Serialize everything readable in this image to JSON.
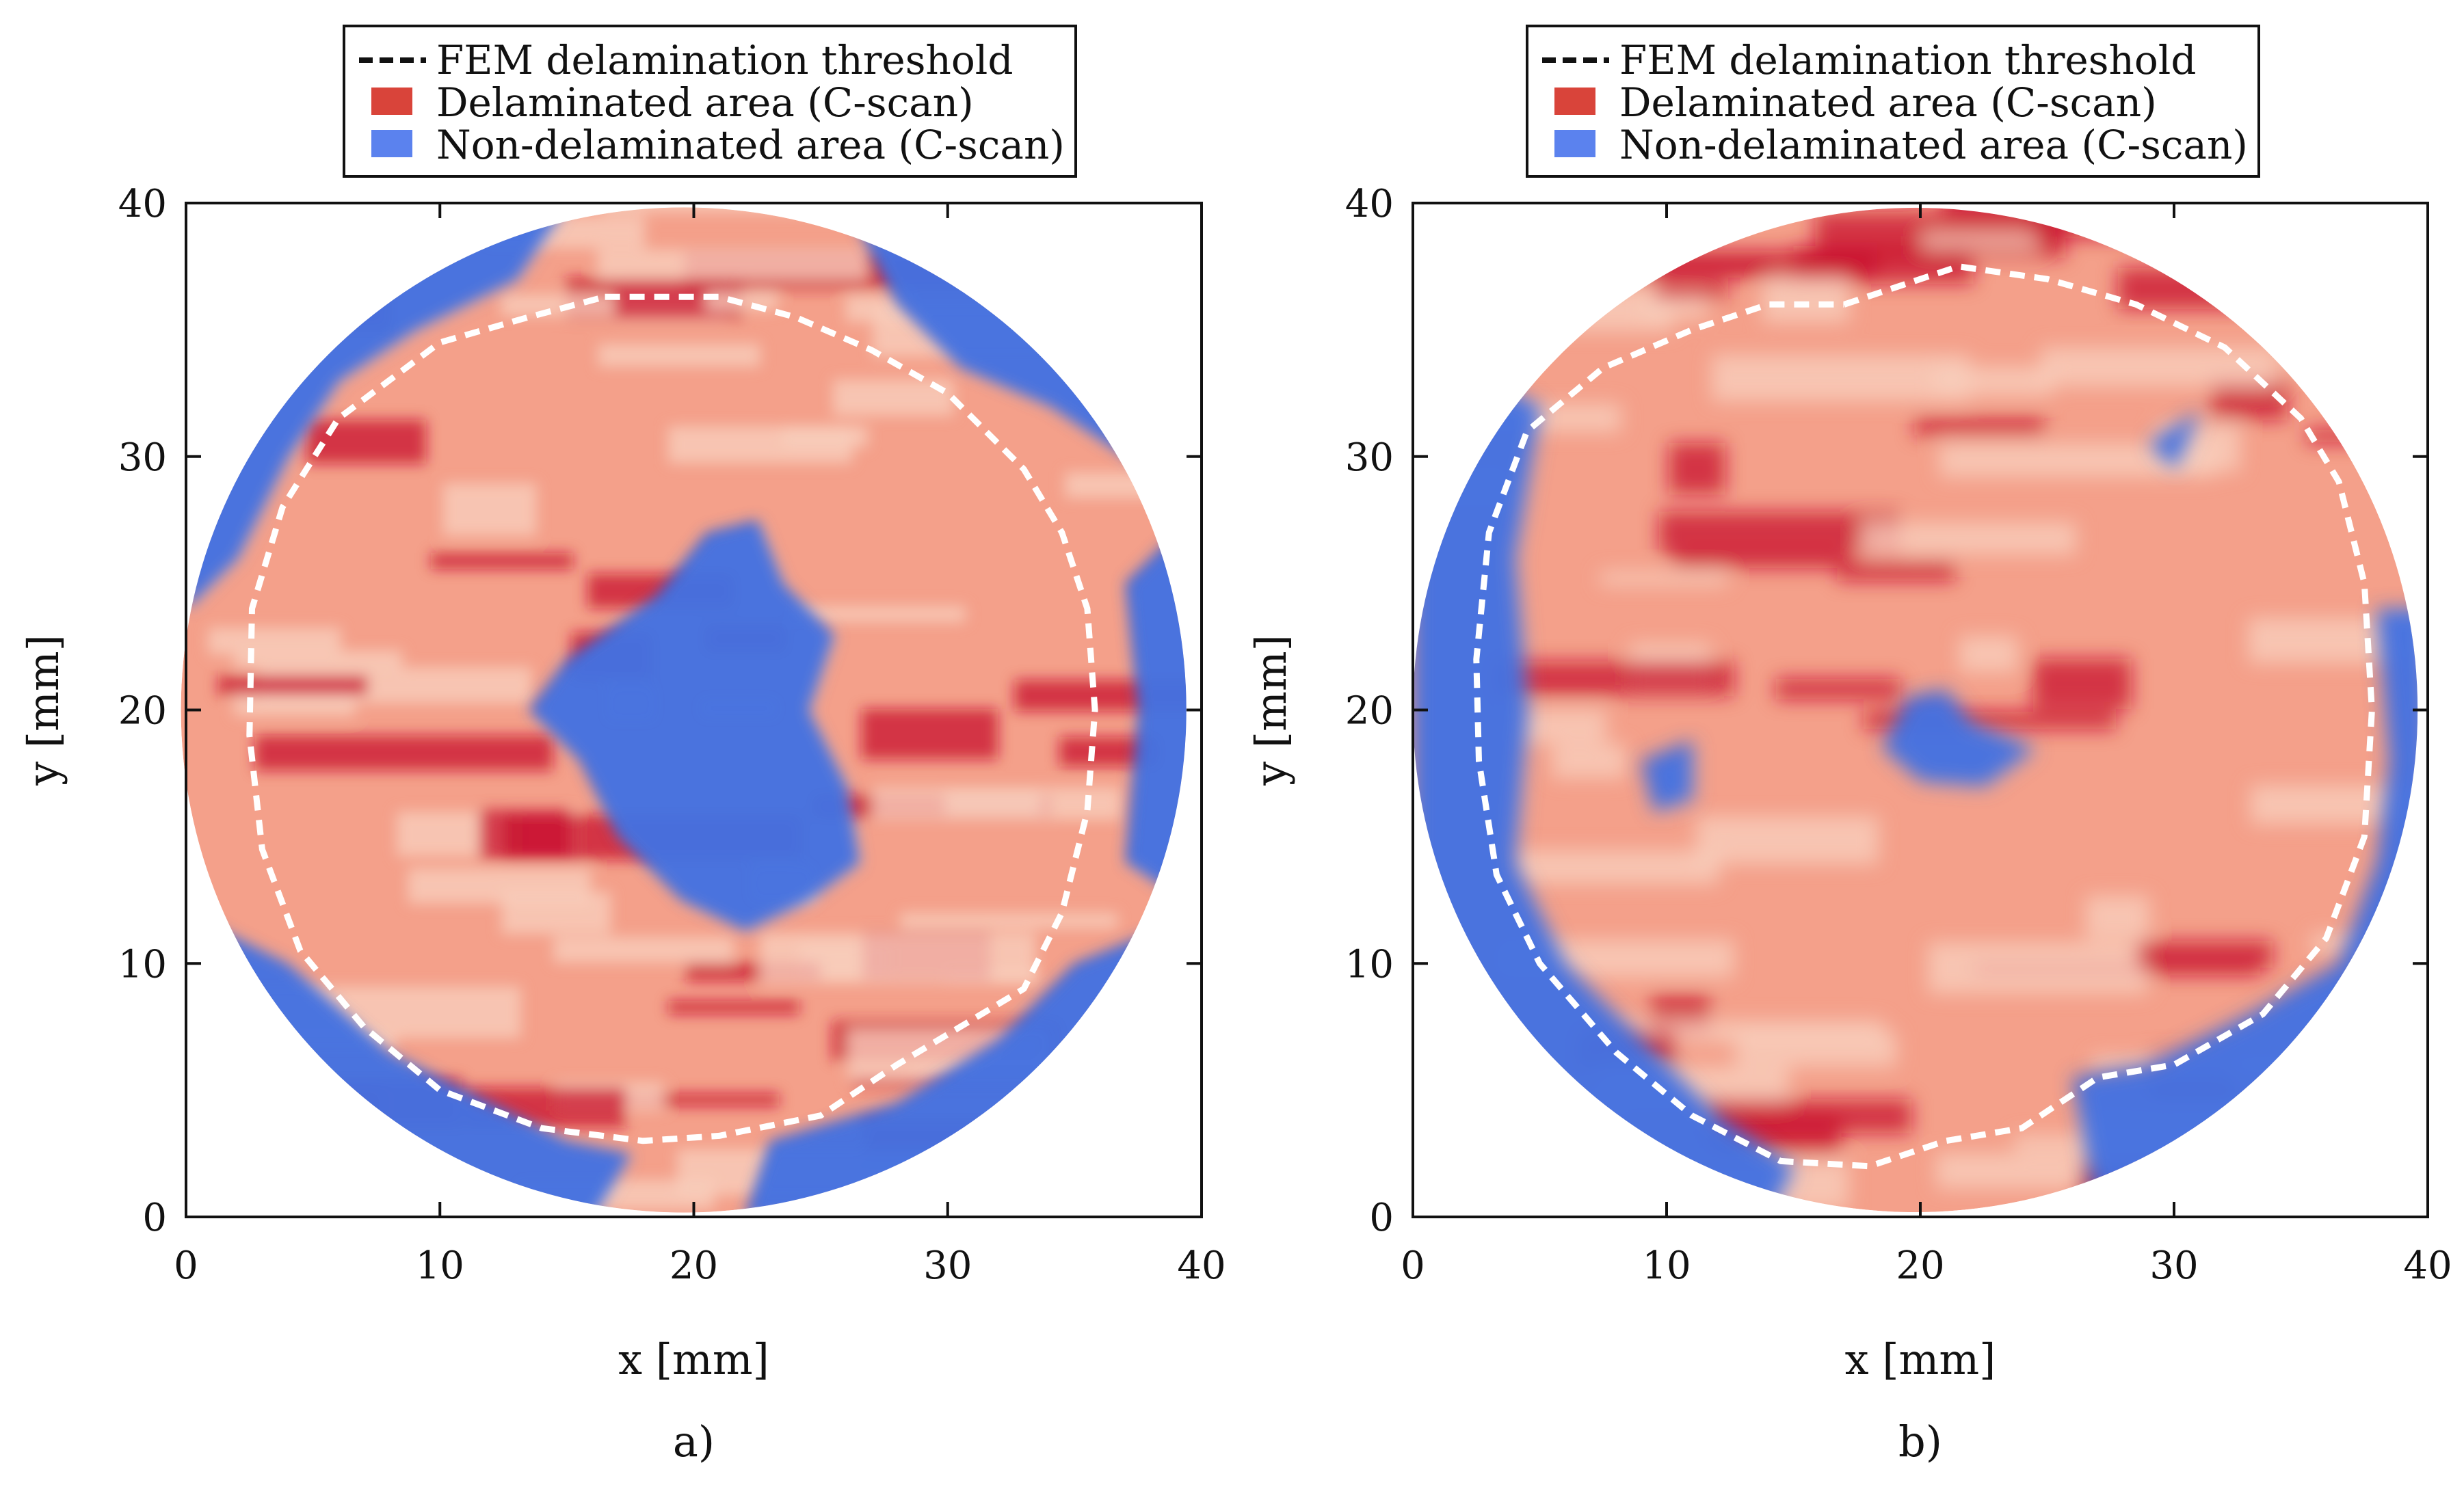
{
  "colors": {
    "delaminated": "#c8102e",
    "delaminated_light": "#f4a08a",
    "delaminated_pale": "#f7cdbc",
    "non_delaminated": "#2a5bd7",
    "non_delaminated_light": "#6f9bf0",
    "threshold_line": "#ffffff",
    "legend_line": "#111111"
  },
  "chart_data": [
    {
      "type": "heatmap",
      "panel_label": "a)",
      "xlabel": "x [mm]",
      "ylabel": "y [mm]",
      "xlim": [
        0,
        40
      ],
      "ylim": [
        0,
        40
      ],
      "xticks": [
        "0",
        "10",
        "20",
        "30",
        "40"
      ],
      "yticks": [
        "0",
        "10",
        "20",
        "30",
        "40"
      ],
      "legend": [
        {
          "label": "FEM delamination threshold",
          "kind": "dashed-line"
        },
        {
          "label": "Delaminated area (C-scan)",
          "kind": "swatch",
          "color": "#d9443a"
        },
        {
          "label": "Non-delaminated area (C-scan)",
          "kind": "swatch",
          "color": "#5b82ee"
        }
      ],
      "specimen": {
        "center": [
          19.6,
          20.0
        ],
        "radius": 19.8
      },
      "fem_threshold_outline": [
        [
          16.5,
          36.3
        ],
        [
          21,
          36.3
        ],
        [
          24,
          35.5
        ],
        [
          27,
          34.2
        ],
        [
          30,
          32.5
        ],
        [
          33,
          29.5
        ],
        [
          34.5,
          27
        ],
        [
          35.5,
          24
        ],
        [
          35.8,
          20
        ],
        [
          35.5,
          16
        ],
        [
          34.5,
          12
        ],
        [
          33,
          9
        ],
        [
          30.5,
          7.5
        ],
        [
          28,
          6
        ],
        [
          25,
          4
        ],
        [
          21,
          3.2
        ],
        [
          18,
          3
        ],
        [
          14,
          3.5
        ],
        [
          10,
          5
        ],
        [
          7,
          7.5
        ],
        [
          4.5,
          10.5
        ],
        [
          3,
          14.5
        ],
        [
          2.5,
          19
        ],
        [
          2.6,
          24
        ],
        [
          3.8,
          28
        ],
        [
          6,
          31.5
        ],
        [
          10,
          34.5
        ],
        [
          13.5,
          35.5
        ],
        [
          16.5,
          36.3
        ]
      ],
      "non_delaminated_regions": [
        {
          "name": "central",
          "outline": [
            [
              15,
              22
            ],
            [
              18.5,
              24.5
            ],
            [
              20.5,
              27
            ],
            [
              22.5,
              27.5
            ],
            [
              23.5,
              25
            ],
            [
              25.5,
              23
            ],
            [
              24.5,
              20
            ],
            [
              26,
              17
            ],
            [
              26.5,
              14
            ],
            [
              24.5,
              12.5
            ],
            [
              22,
              11.3
            ],
            [
              19.5,
              12.5
            ],
            [
              17,
              15
            ],
            [
              15.5,
              18
            ],
            [
              13.5,
              20
            ]
          ]
        },
        {
          "name": "outer-left-top",
          "outline": [
            [
              0,
              40
            ],
            [
              15,
              40
            ],
            [
              13,
              37
            ],
            [
              9,
              35
            ],
            [
              6,
              33
            ],
            [
              4,
              30
            ],
            [
              2,
              26
            ],
            [
              0,
              24
            ]
          ]
        },
        {
          "name": "outer-top-right",
          "outline": [
            [
              26,
              40
            ],
            [
              40,
              40
            ],
            [
              40,
              28
            ],
            [
              37,
              30
            ],
            [
              34,
              32
            ],
            [
              30.5,
              33.5
            ],
            [
              28,
              36
            ]
          ]
        },
        {
          "name": "outer-right",
          "outline": [
            [
              40,
              28
            ],
            [
              40,
              12
            ],
            [
              37,
              14
            ],
            [
              37.5,
              20
            ],
            [
              37,
              25
            ]
          ]
        },
        {
          "name": "outer-bottom-left",
          "outline": [
            [
              0,
              12
            ],
            [
              4,
              10
            ],
            [
              8,
              6.5
            ],
            [
              12,
              4.5
            ],
            [
              15,
              3
            ],
            [
              17.5,
              2.5
            ],
            [
              16,
              0
            ],
            [
              0,
              0
            ]
          ]
        },
        {
          "name": "outer-bottom-right",
          "outline": [
            [
              40,
              12
            ],
            [
              35,
              10
            ],
            [
              32,
              7
            ],
            [
              28,
              4.5
            ],
            [
              23,
              3
            ],
            [
              22,
              0
            ],
            [
              40,
              0
            ]
          ]
        }
      ]
    },
    {
      "type": "heatmap",
      "panel_label": "b)",
      "xlabel": "x [mm]",
      "ylabel": "y [mm]",
      "xlim": [
        0,
        40
      ],
      "ylim": [
        0,
        40
      ],
      "xticks": [
        "0",
        "10",
        "20",
        "30",
        "40"
      ],
      "yticks": [
        "0",
        "10",
        "20",
        "30",
        "40"
      ],
      "legend": [
        {
          "label": "FEM delamination threshold",
          "kind": "dashed-line"
        },
        {
          "label": "Delaminated area (C-scan)",
          "kind": "swatch",
          "color": "#d9443a"
        },
        {
          "label": "Non-delaminated area (C-scan)",
          "kind": "swatch",
          "color": "#5b82ee"
        }
      ],
      "specimen": {
        "center": [
          19.8,
          20.0
        ],
        "radius": 19.8
      },
      "fem_threshold_outline": [
        [
          17,
          36
        ],
        [
          21.5,
          37.5
        ],
        [
          25,
          37
        ],
        [
          28.5,
          36
        ],
        [
          32,
          34.3
        ],
        [
          35,
          31.5
        ],
        [
          36.5,
          29
        ],
        [
          37.5,
          25
        ],
        [
          37.8,
          20
        ],
        [
          37.5,
          15
        ],
        [
          36,
          11
        ],
        [
          33.5,
          8
        ],
        [
          30,
          6
        ],
        [
          27,
          5.5
        ],
        [
          24,
          3.5
        ],
        [
          21,
          3
        ],
        [
          18,
          2
        ],
        [
          14.5,
          2.2
        ],
        [
          11,
          4
        ],
        [
          8,
          6.5
        ],
        [
          5,
          10
        ],
        [
          3.3,
          13.5
        ],
        [
          2.6,
          18
        ],
        [
          2.5,
          22
        ],
        [
          3,
          27
        ],
        [
          4.5,
          31
        ],
        [
          7.5,
          33.5
        ],
        [
          11,
          35
        ],
        [
          14,
          36
        ],
        [
          17,
          36
        ]
      ],
      "non_delaminated_regions": [
        {
          "name": "central",
          "outline": [
            [
              18.5,
              18.5
            ],
            [
              19.5,
              20.5
            ],
            [
              21,
              20.8
            ],
            [
              22,
              19.5
            ],
            [
              24.5,
              18.5
            ],
            [
              22.5,
              17
            ],
            [
              20,
              17.2
            ]
          ]
        },
        {
          "name": "outer-left",
          "outline": [
            [
              0,
              28
            ],
            [
              3,
              33
            ],
            [
              5,
              32
            ],
            [
              4,
              26
            ],
            [
              4.5,
              20
            ],
            [
              4,
              14
            ],
            [
              6,
              10
            ],
            [
              9,
              7
            ],
            [
              12,
              4
            ],
            [
              15,
              2
            ],
            [
              14,
              0
            ],
            [
              0,
              0
            ]
          ]
        },
        {
          "name": "outer-right",
          "outline": [
            [
              40,
              24
            ],
            [
              38,
              24
            ],
            [
              38.5,
              18
            ],
            [
              38,
              14
            ],
            [
              36.5,
              10
            ],
            [
              33,
              8
            ],
            [
              29,
              6
            ],
            [
              26,
              5.5
            ],
            [
              27,
              0
            ],
            [
              40,
              0
            ]
          ]
        },
        {
          "name": "patch-right-top",
          "outline": [
            [
              29,
              30.5
            ],
            [
              31,
              31.8
            ],
            [
              30,
              29.5
            ]
          ]
        },
        {
          "name": "patch-mid-left",
          "outline": [
            [
              9,
              18
            ],
            [
              11,
              18.8
            ],
            [
              11,
              16.5
            ],
            [
              9.5,
              16
            ]
          ]
        }
      ]
    }
  ]
}
